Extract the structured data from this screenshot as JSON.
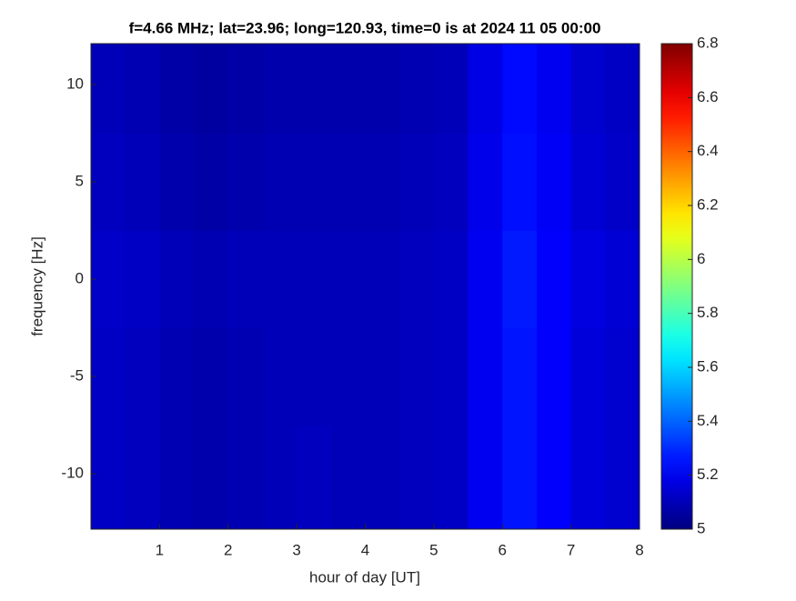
{
  "chart_data": {
    "type": "heatmap",
    "title": "f=4.66 MHz;  lat=23.96; long=120.93, time=0 is at 2024 11 05 00:00",
    "xlabel": "hour of day [UT]",
    "ylabel": "frequency [Hz]",
    "xlim": [
      0,
      8
    ],
    "ylim": [
      -12.85,
      12.1
    ],
    "xticks": [
      1,
      2,
      3,
      4,
      5,
      6,
      7,
      8
    ],
    "yticks": [
      -10,
      -5,
      0,
      5,
      10
    ],
    "xbins": [
      0,
      0.5,
      1,
      1.5,
      2,
      2.5,
      3,
      3.5,
      4,
      4.5,
      5,
      5.5,
      6,
      6.5,
      7,
      7.5,
      8
    ],
    "ybins": [
      -12.85,
      -7.5,
      -2.5,
      2.5,
      7.5,
      12.1
    ],
    "values": [
      [
        5.12,
        5.11,
        5.09,
        5.08,
        5.09,
        5.1,
        5.11,
        5.1,
        5.1,
        5.11,
        5.12,
        5.2,
        5.26,
        5.22,
        5.16,
        5.14
      ],
      [
        5.12,
        5.11,
        5.09,
        5.08,
        5.09,
        5.1,
        5.1,
        5.1,
        5.1,
        5.11,
        5.12,
        5.2,
        5.26,
        5.22,
        5.16,
        5.14
      ],
      [
        5.13,
        5.12,
        5.1,
        5.09,
        5.1,
        5.1,
        5.1,
        5.1,
        5.1,
        5.11,
        5.12,
        5.2,
        5.27,
        5.22,
        5.17,
        5.15
      ],
      [
        5.11,
        5.1,
        5.08,
        5.07,
        5.08,
        5.09,
        5.09,
        5.09,
        5.09,
        5.1,
        5.11,
        5.19,
        5.25,
        5.21,
        5.15,
        5.13
      ],
      [
        5.1,
        5.09,
        5.07,
        5.06,
        5.07,
        5.08,
        5.08,
        5.08,
        5.08,
        5.09,
        5.1,
        5.18,
        5.24,
        5.2,
        5.14,
        5.12
      ]
    ],
    "colormap": "jet",
    "clim": [
      5,
      6.8
    ],
    "cticks": [
      5,
      5.2,
      5.4,
      5.6,
      5.8,
      6,
      6.2,
      6.4,
      6.6,
      6.8
    ]
  }
}
